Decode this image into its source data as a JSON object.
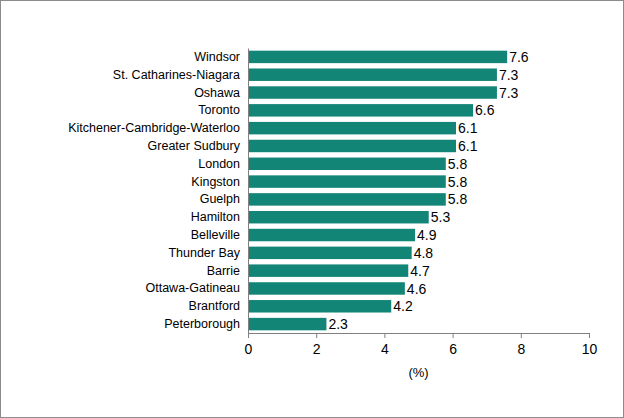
{
  "chart_data": {
    "type": "bar",
    "orientation": "horizontal",
    "categories": [
      "Windsor",
      "St. Catharines-Niagara",
      "Oshawa",
      "Toronto",
      "Kitchener-Cambridge-Waterloo",
      "Greater Sudbury",
      "London",
      "Kingston",
      "Guelph",
      "Hamilton",
      "Belleville",
      "Thunder Bay",
      "Barrie",
      "Ottawa-Gatineau",
      "Brantford",
      "Peterborough"
    ],
    "values": [
      7.6,
      7.3,
      7.3,
      6.6,
      6.1,
      6.1,
      5.8,
      5.8,
      5.8,
      5.3,
      4.9,
      4.8,
      4.7,
      4.6,
      4.2,
      2.3
    ],
    "color": "#138576",
    "xlim": [
      0,
      10
    ],
    "xticks": [
      0,
      2,
      4,
      6,
      8,
      10
    ],
    "xlabel": "(%)",
    "data_labels": true,
    "grid": false
  }
}
